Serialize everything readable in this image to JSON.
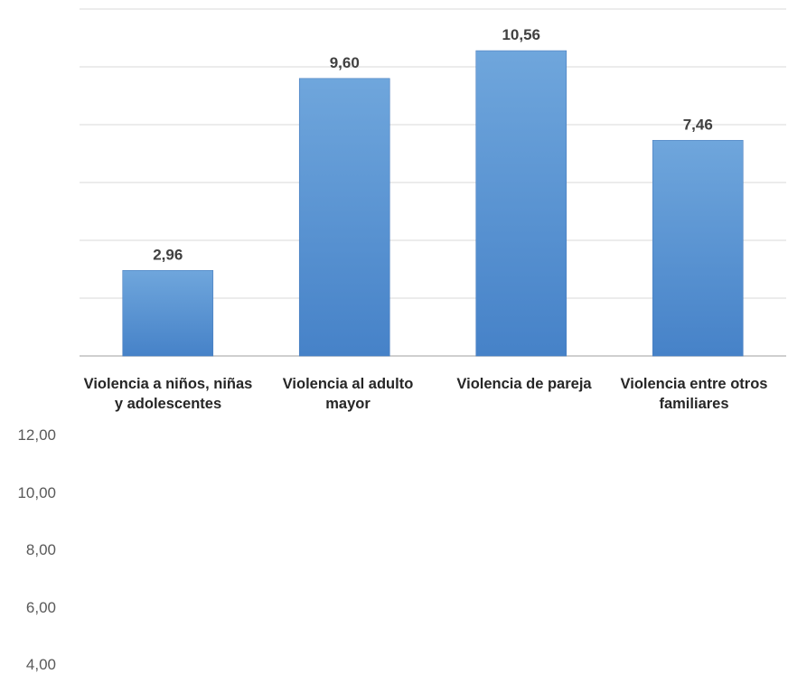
{
  "chart_data": {
    "type": "bar",
    "categories": [
      "Violencia a niños, niñas y adolescentes",
      "Violencia al adulto mayor",
      "Violencia de pareja",
      "Violencia entre otros familiares"
    ],
    "values": [
      2.96,
      9.6,
      10.56,
      7.46
    ],
    "data_labels": [
      "2,96",
      "9,60",
      "10,56",
      "7,46"
    ],
    "y_tick_labels": [
      "12,00",
      "10,00",
      "8,00",
      "6,00",
      "4,00"
    ],
    "ylim": [
      0,
      12
    ],
    "grid": true,
    "bar_color": "#5b9bd5",
    "title": "",
    "xlabel": "",
    "ylabel": ""
  }
}
